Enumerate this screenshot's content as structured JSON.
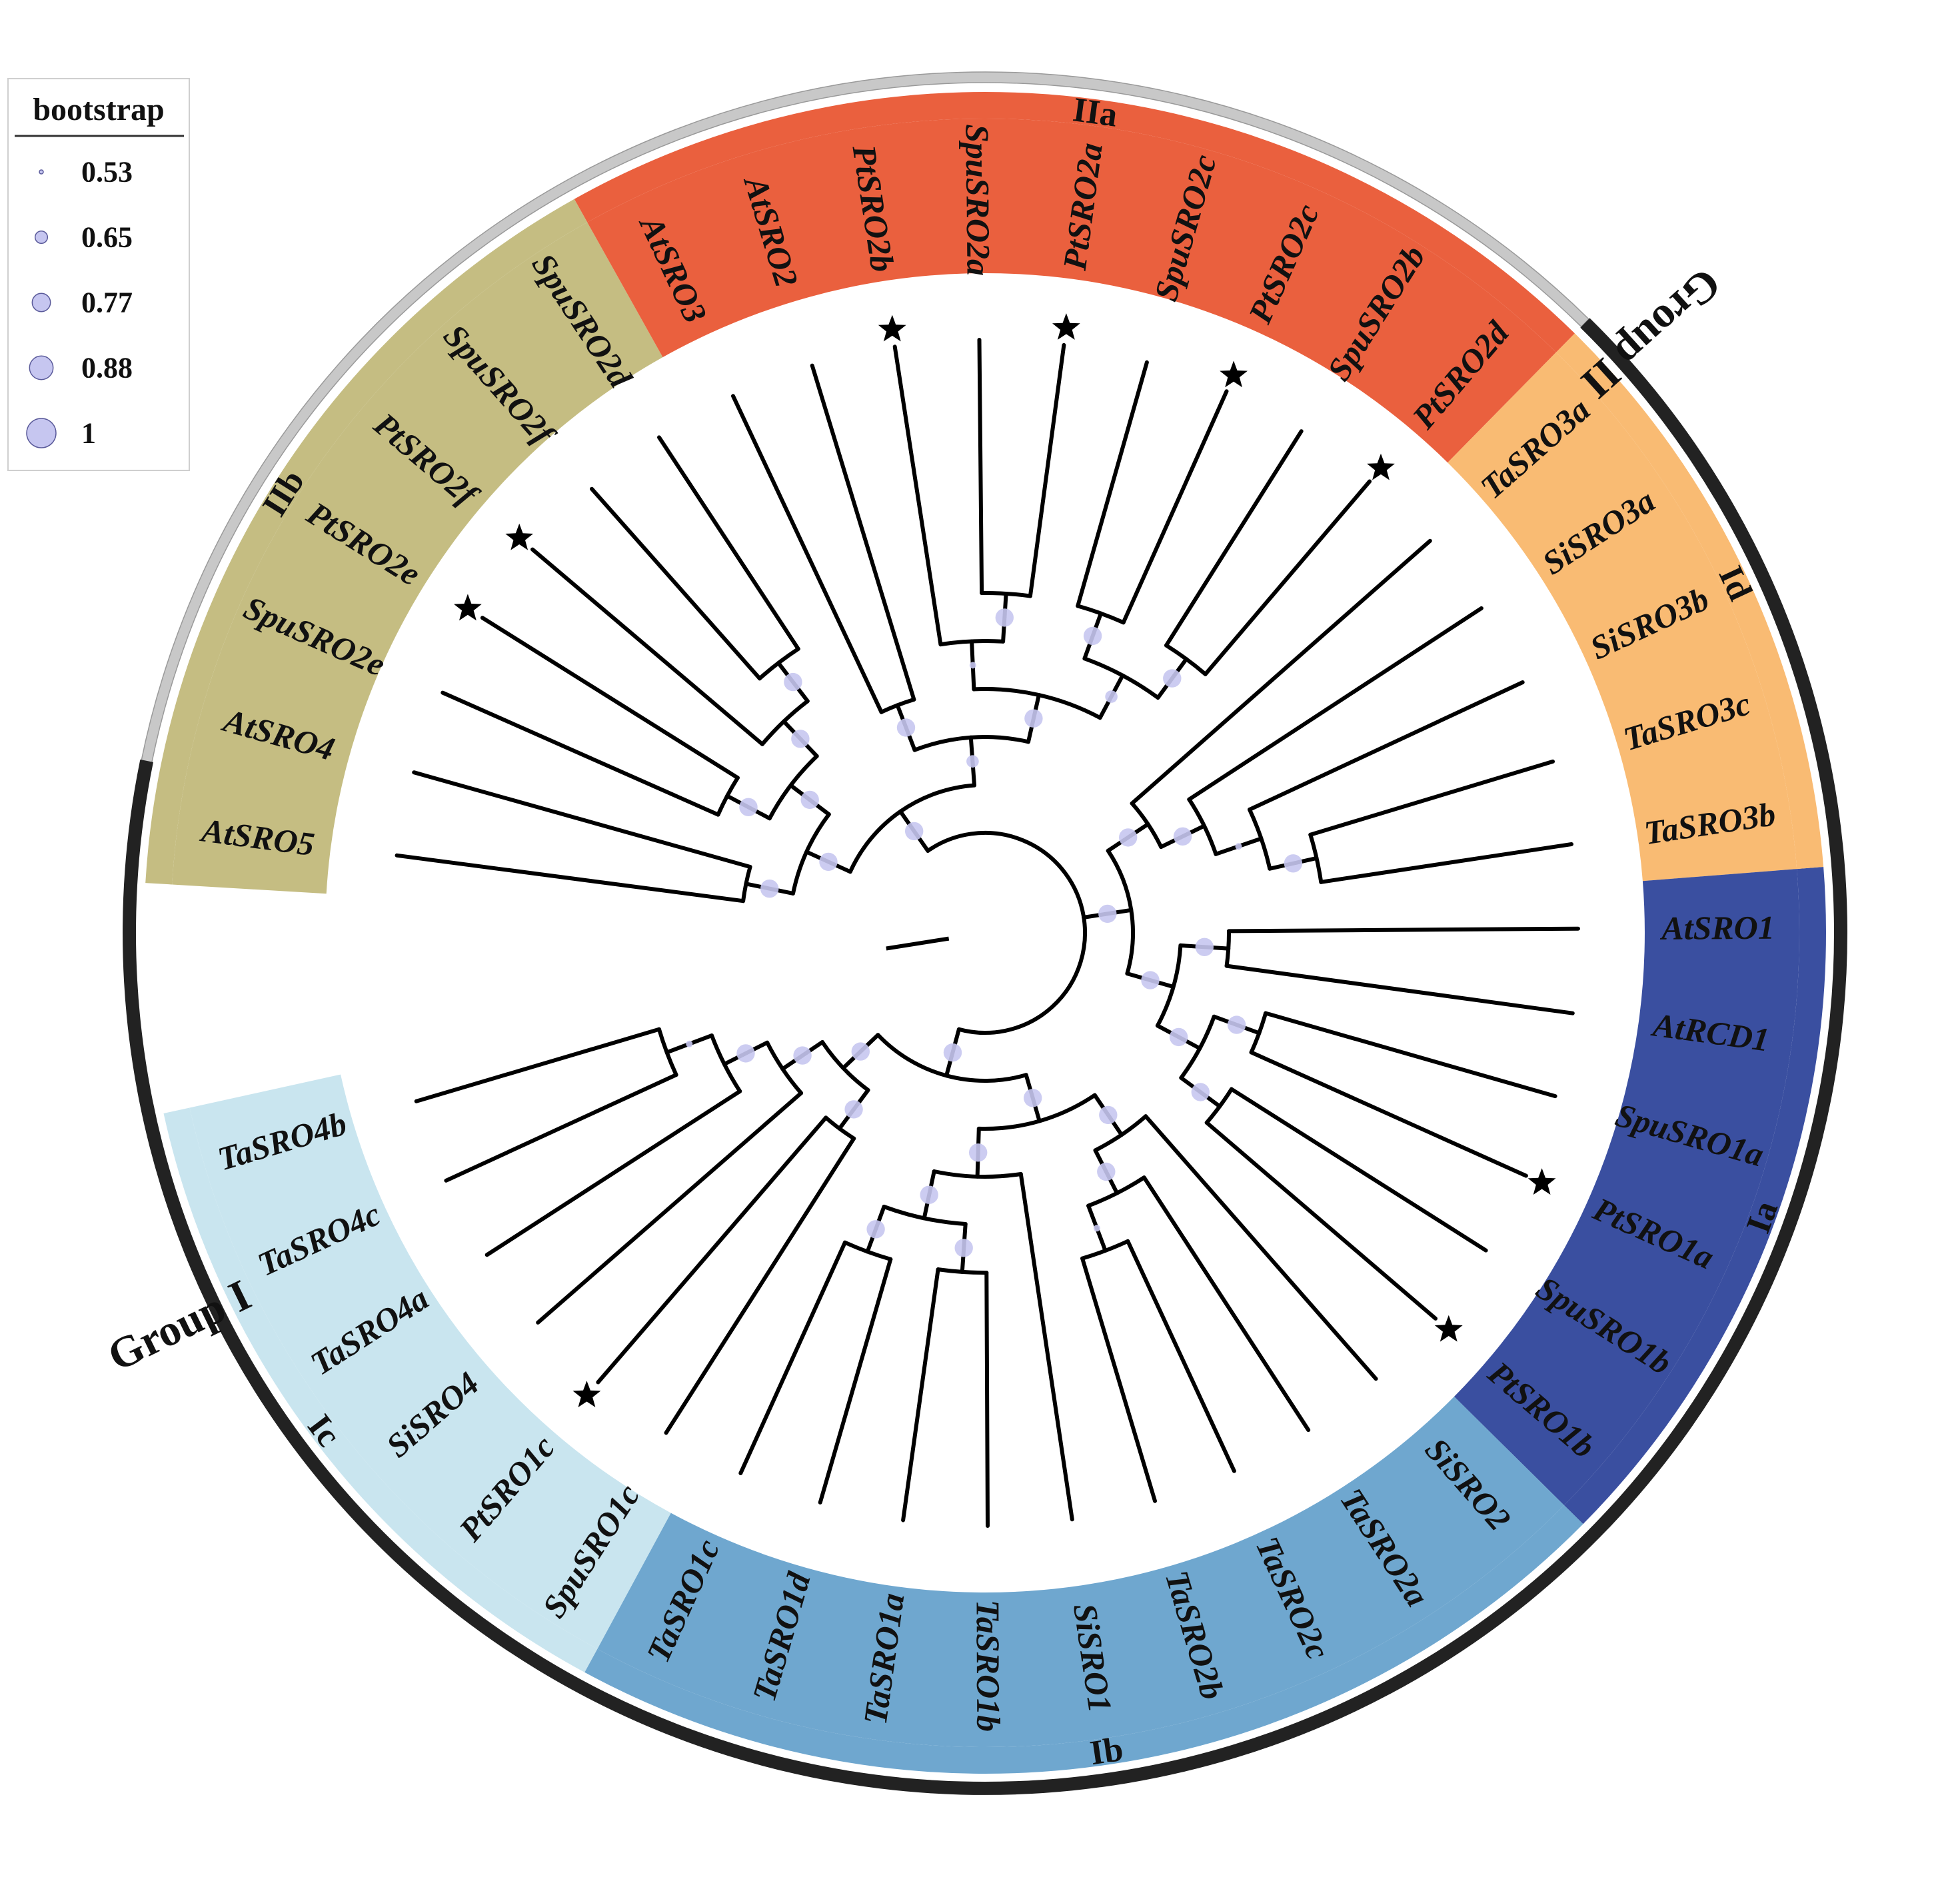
{
  "legend": {
    "title": "bootstrap",
    "entries": [
      {
        "label": "0.53",
        "value": 0.53
      },
      {
        "label": "0.65",
        "value": 0.65
      },
      {
        "label": "0.77",
        "value": 0.77
      },
      {
        "label": "0.88",
        "value": 0.88
      },
      {
        "label": "1",
        "value": 1
      }
    ]
  },
  "colors": {
    "Ia": "#3a4fa0",
    "Ib": "#6fa7cf",
    "Ic": "#c9e5ef",
    "Id": "#f9bb73",
    "IIa": "#ea603e",
    "IIb": "#c5bd82",
    "groupI": "#222222",
    "groupII": "#c8c8c8",
    "node": "#c6c6f0",
    "branch": "#000000"
  },
  "groups": [
    {
      "name": "Group I",
      "key": "groupI"
    },
    {
      "name": "Group II",
      "key": "groupII"
    }
  ],
  "subfamilies": [
    {
      "name": "Ia",
      "key": "Ia"
    },
    {
      "name": "Ib",
      "key": "Ib"
    },
    {
      "name": "Ic",
      "key": "Ic"
    },
    {
      "name": "Id",
      "key": "Id"
    },
    {
      "name": "IIa",
      "key": "IIa"
    },
    {
      "name": "IIb",
      "key": "IIb"
    }
  ],
  "tips": [
    {
      "label": "AtSRO5",
      "clade": "IIb",
      "star": false
    },
    {
      "label": "AtSRO4",
      "clade": "IIb",
      "star": false
    },
    {
      "label": "SpuSRO2e",
      "clade": "IIb",
      "star": false
    },
    {
      "label": "PtSRO2e",
      "clade": "IIb",
      "star": true
    },
    {
      "label": "PtSRO2f",
      "clade": "IIb",
      "star": true
    },
    {
      "label": "SpuSRO2f",
      "clade": "IIb",
      "star": false
    },
    {
      "label": "SpuSRO2d",
      "clade": "IIb",
      "star": false
    },
    {
      "label": "AtSRO3",
      "clade": "IIa",
      "star": false
    },
    {
      "label": "AtSRO2",
      "clade": "IIa",
      "star": false
    },
    {
      "label": "PtSRO2b",
      "clade": "IIa",
      "star": true
    },
    {
      "label": "SpuSRO2a",
      "clade": "IIa",
      "star": false
    },
    {
      "label": "PtSRO2a",
      "clade": "IIa",
      "star": true
    },
    {
      "label": "SpuSRO2c",
      "clade": "IIa",
      "star": false
    },
    {
      "label": "PtSRO2c",
      "clade": "IIa",
      "star": true
    },
    {
      "label": "SpuSRO2b",
      "clade": "IIa",
      "star": false
    },
    {
      "label": "PtSRO2d",
      "clade": "IIa",
      "star": true
    },
    {
      "label": "TaSRO3a",
      "clade": "Id",
      "star": false
    },
    {
      "label": "SiSRO3a",
      "clade": "Id",
      "star": false
    },
    {
      "label": "SiSRO3b",
      "clade": "Id",
      "star": false
    },
    {
      "label": "TaSRO3c",
      "clade": "Id",
      "star": false
    },
    {
      "label": "TaSRO3b",
      "clade": "Id",
      "star": false
    },
    {
      "label": "AtSRO1",
      "clade": "Ia",
      "star": false
    },
    {
      "label": "AtRCD1",
      "clade": "Ia",
      "star": false
    },
    {
      "label": "SpuSRO1a",
      "clade": "Ia",
      "star": false
    },
    {
      "label": "PtSRO1a",
      "clade": "Ia",
      "star": true
    },
    {
      "label": "SpuSRO1b",
      "clade": "Ia",
      "star": false
    },
    {
      "label": "PtSRO1b",
      "clade": "Ia",
      "star": true
    },
    {
      "label": "SiSRO2",
      "clade": "Ib",
      "star": false
    },
    {
      "label": "TaSRO2a",
      "clade": "Ib",
      "star": false
    },
    {
      "label": "TaSRO2c",
      "clade": "Ib",
      "star": false
    },
    {
      "label": "TaSRO2b",
      "clade": "Ib",
      "star": false
    },
    {
      "label": "SiSRO1",
      "clade": "Ib",
      "star": false
    },
    {
      "label": "TaSRO1b",
      "clade": "Ib",
      "star": false
    },
    {
      "label": "TaSRO1a",
      "clade": "Ib",
      "star": false
    },
    {
      "label": "TaSRO1d",
      "clade": "Ib",
      "star": false
    },
    {
      "label": "TaSRO1c",
      "clade": "Ib",
      "star": false
    },
    {
      "label": "SpuSRO1c",
      "clade": "Ic",
      "star": false
    },
    {
      "label": "PtSRO1c",
      "clade": "Ic",
      "star": true
    },
    {
      "label": "SiSRO4",
      "clade": "Ic",
      "star": false
    },
    {
      "label": "TaSRO4a",
      "clade": "Ic",
      "star": false
    },
    {
      "label": "TaSRO4c",
      "clade": "Ic",
      "star": false
    },
    {
      "label": "TaSRO4b",
      "clade": "Ic",
      "star": false
    }
  ],
  "tree": {
    "c": [
      {
        "b": 0.77,
        "c": [
          {
            "b": 0.77,
            "c": [
              {
                "b": 0.77,
                "c": [
                  {
                    "t": 0
                  },
                  {
                    "t": 1
                  }
                ]
              },
              {
                "b": 0.77,
                "c": [
                  {
                    "b": 0.77,
                    "c": [
                      {
                        "t": 2
                      },
                      {
                        "t": 3
                      }
                    ]
                  },
                  {
                    "b": 0.77,
                    "c": [
                      {
                        "t": 4
                      },
                      {
                        "b": 0.77,
                        "c": [
                          {
                            "t": 5
                          },
                          {
                            "t": 6
                          }
                        ]
                      }
                    ]
                  }
                ]
              }
            ]
          },
          {
            "b": 0.65,
            "c": [
              {
                "b": 0.77,
                "c": [
                  {
                    "t": 7
                  },
                  {
                    "t": 8
                  }
                ]
              },
              {
                "b": 0.77,
                "c": [
                  {
                    "b": 0.53,
                    "c": [
                      {
                        "t": 9
                      },
                      {
                        "b": 0.77,
                        "c": [
                          {
                            "t": 10
                          },
                          {
                            "t": 11
                          }
                        ]
                      }
                    ]
                  },
                  {
                    "b": 0.65,
                    "c": [
                      {
                        "b": 0.77,
                        "c": [
                          {
                            "t": 12
                          },
                          {
                            "t": 13
                          }
                        ]
                      },
                      {
                        "b": 0.77,
                        "c": [
                          {
                            "t": 14
                          },
                          {
                            "t": 15
                          }
                        ]
                      }
                    ]
                  }
                ]
              }
            ]
          }
        ]
      },
      {
        "b": 0.77,
        "c": [
          {
            "b": 0.77,
            "c": [
              {
                "t": 16
              },
              {
                "b": 0.77,
                "c": [
                  {
                    "t": 17
                  },
                  {
                    "b": 0.53,
                    "c": [
                      {
                        "t": 18
                      },
                      {
                        "b": 0.77,
                        "c": [
                          {
                            "t": 19
                          },
                          {
                            "t": 20
                          }
                        ]
                      }
                    ]
                  }
                ]
              }
            ]
          },
          {
            "b": 0.77,
            "c": [
              {
                "b": 0.77,
                "c": [
                  {
                    "t": 21
                  },
                  {
                    "t": 22
                  }
                ]
              },
              {
                "b": 0.77,
                "c": [
                  {
                    "b": 0.77,
                    "c": [
                      {
                        "t": 23
                      },
                      {
                        "t": 24
                      }
                    ]
                  },
                  {
                    "b": 0.77,
                    "c": [
                      {
                        "t": 25
                      },
                      {
                        "t": 26
                      }
                    ]
                  }
                ]
              }
            ]
          }
        ]
      },
      {
        "b": 0.77,
        "c": [
          {
            "b": 0.77,
            "c": [
              {
                "b": 0.77,
                "c": [
                  {
                    "t": 27
                  },
                  {
                    "b": 0.77,
                    "c": [
                      {
                        "t": 28
                      },
                      {
                        "b": 0.53,
                        "c": [
                          {
                            "t": 29
                          },
                          {
                            "t": 30
                          }
                        ]
                      }
                    ]
                  }
                ]
              },
              {
                "b": 0.77,
                "c": [
                  {
                    "t": 31
                  },
                  {
                    "b": 0.77,
                    "c": [
                      {
                        "b": 0.77,
                        "c": [
                          {
                            "t": 32
                          },
                          {
                            "t": 33
                          }
                        ]
                      },
                      {
                        "b": 0.77,
                        "c": [
                          {
                            "t": 34
                          },
                          {
                            "t": 35
                          }
                        ]
                      }
                    ]
                  }
                ]
              }
            ]
          },
          {
            "b": 0.77,
            "c": [
              {
                "b": 0.77,
                "c": [
                  {
                    "t": 36
                  },
                  {
                    "t": 37
                  }
                ]
              },
              {
                "b": 0.77,
                "c": [
                  {
                    "t": 38
                  },
                  {
                    "b": 0.77,
                    "c": [
                      {
                        "t": 39
                      },
                      {
                        "b": 0.53,
                        "c": [
                          {
                            "t": 40
                          },
                          {
                            "t": 41
                          }
                        ]
                      }
                    ]
                  }
                ]
              }
            ]
          }
        ]
      }
    ]
  }
}
